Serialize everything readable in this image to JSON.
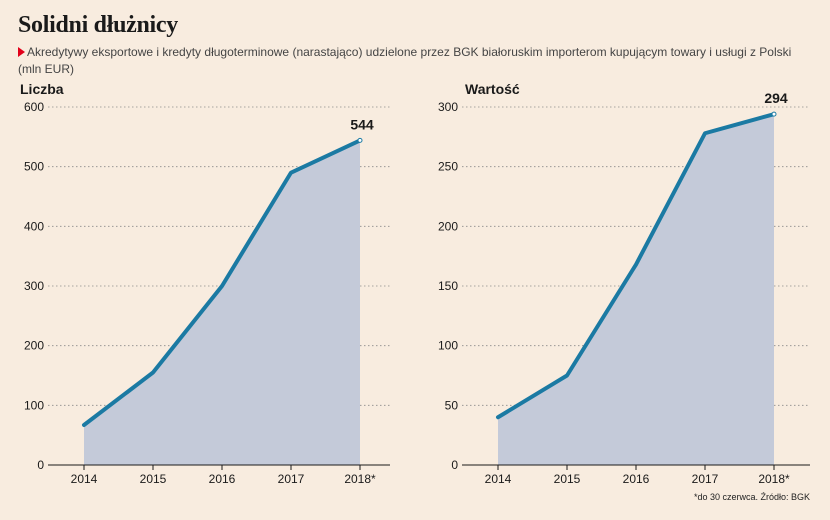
{
  "header": {
    "title": "Solidni dłużnicy",
    "subtitle": "Akredytywy eksportowe i kredyty długoterminowe (narastająco) udzielone przez BGK białoruskim importerom kupującym towary i usługi z Polski (mln EUR)"
  },
  "footnote": "*do 30 czerwca. Źródło: BGK",
  "chart_data": [
    {
      "type": "area",
      "title": "Liczba",
      "categories": [
        "2014",
        "2015",
        "2016",
        "2017",
        "2018*"
      ],
      "values": [
        67,
        155,
        300,
        490,
        544
      ],
      "end_label": "544",
      "ylim": [
        0,
        600
      ],
      "yticks": [
        0,
        100,
        200,
        300,
        400,
        500,
        600
      ],
      "grid": true,
      "colors": {
        "line": "#1b7aa3",
        "fill": "#c4cad9"
      }
    },
    {
      "type": "area",
      "title": "Wartość",
      "categories": [
        "2014",
        "2015",
        "2016",
        "2017",
        "2018*"
      ],
      "values": [
        40,
        75,
        168,
        278,
        294
      ],
      "end_label": "294",
      "ylim": [
        0,
        300
      ],
      "yticks": [
        0,
        50,
        100,
        150,
        200,
        250,
        300
      ],
      "grid": true,
      "colors": {
        "line": "#1b7aa3",
        "fill": "#c4cad9"
      }
    }
  ]
}
